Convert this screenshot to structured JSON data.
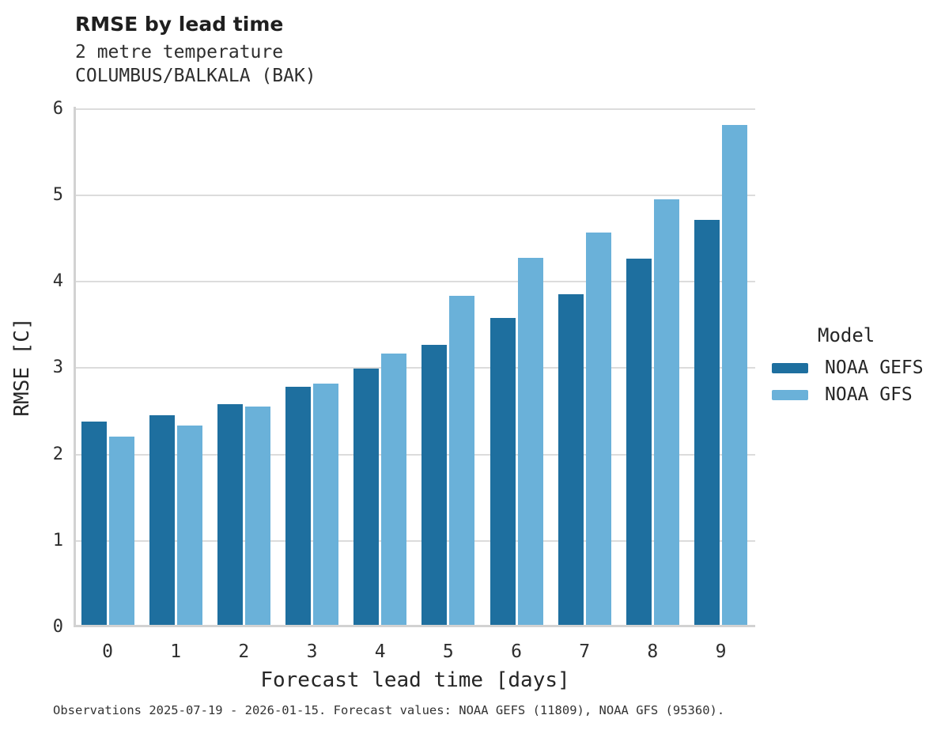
{
  "title": "RMSE by lead time",
  "subtitle1": "2 metre temperature",
  "subtitle2": "COLUMBUS/BALKALA (BAK)",
  "legend": {
    "title": "Model"
  },
  "footer": {
    "note": "Observations 2025-07-19 - 2026-01-15. Forecast values: NOAA GEFS (11809), NOAA GFS (95360)."
  },
  "colors": {
    "gefs": "#1e6f9f",
    "gfs": "#6ab1d9",
    "gridline": "#dcdcdc",
    "axis": "#d2d2d2",
    "text": "#2e2e2e"
  },
  "chart_data": {
    "type": "bar",
    "categories": [
      0,
      1,
      2,
      3,
      4,
      5,
      6,
      7,
      8,
      9
    ],
    "series": [
      {
        "name": "NOAA GEFS",
        "color": "#1e6f9f",
        "values": [
          2.35,
          2.43,
          2.56,
          2.76,
          2.97,
          3.24,
          3.55,
          3.83,
          4.24,
          4.69
        ]
      },
      {
        "name": "NOAA GFS",
        "color": "#6ab1d9",
        "values": [
          2.18,
          2.31,
          2.53,
          2.79,
          3.14,
          3.81,
          4.25,
          4.54,
          4.93,
          5.79
        ]
      }
    ],
    "title": "RMSE by lead time",
    "subtitle": "2 metre temperature COLUMBUS/BALKALA (BAK)",
    "xlabel": "Forecast lead time [days]",
    "ylabel": "RMSE [C]",
    "ylim": [
      0,
      6
    ],
    "yticks": [
      0,
      1,
      2,
      3,
      4,
      5,
      6
    ],
    "grid": true,
    "legend_title": "Model",
    "legend_position": "right"
  }
}
